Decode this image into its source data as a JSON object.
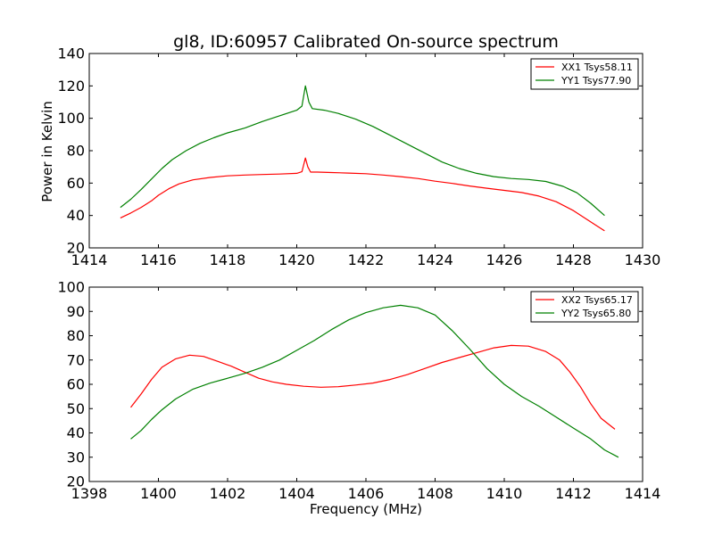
{
  "figure": {
    "title": "gl8, ID:60957 Calibrated On-source spectrum",
    "ylabel": "Power in Kelvin",
    "xlabel": "Frequency (MHz)"
  },
  "colors": {
    "XX": "#ff0000",
    "YY": "#008000",
    "axes": "#000000"
  },
  "chart_data": [
    {
      "type": "line",
      "title": "",
      "xlabel": "",
      "ylabel": "Power in Kelvin",
      "xlim": [
        1414,
        1430
      ],
      "ylim": [
        20,
        140
      ],
      "x_ticks": [
        1414,
        1416,
        1418,
        1420,
        1422,
        1424,
        1426,
        1428,
        1430
      ],
      "y_ticks": [
        20,
        40,
        60,
        80,
        100,
        120,
        140
      ],
      "legend_position": "top-right",
      "series": [
        {
          "name": "XX1 Tsys58.11",
          "color": "#ff0000",
          "points": [
            [
              1414.9,
              38.5
            ],
            [
              1415.2,
              41.5
            ],
            [
              1415.5,
              45
            ],
            [
              1415.8,
              49
            ],
            [
              1416.0,
              52.5
            ],
            [
              1416.3,
              56.5
            ],
            [
              1416.6,
              59.5
            ],
            [
              1417.0,
              62
            ],
            [
              1417.5,
              63.5
            ],
            [
              1418.0,
              64.5
            ],
            [
              1418.5,
              65
            ],
            [
              1419.0,
              65.3
            ],
            [
              1419.5,
              65.6
            ],
            [
              1420.0,
              66
            ],
            [
              1420.15,
              67
            ],
            [
              1420.25,
              75.5
            ],
            [
              1420.32,
              70
            ],
            [
              1420.4,
              66.8
            ],
            [
              1420.6,
              66.8
            ],
            [
              1421.0,
              66.5
            ],
            [
              1421.5,
              66.2
            ],
            [
              1422.0,
              65.8
            ],
            [
              1422.5,
              65
            ],
            [
              1423.0,
              64
            ],
            [
              1423.5,
              62.8
            ],
            [
              1424.0,
              61.2
            ],
            [
              1424.5,
              59.8
            ],
            [
              1425.0,
              58.2
            ],
            [
              1425.5,
              56.8
            ],
            [
              1426.0,
              55.5
            ],
            [
              1426.5,
              54.2
            ],
            [
              1427.0,
              52
            ],
            [
              1427.5,
              48.5
            ],
            [
              1428.0,
              43
            ],
            [
              1428.5,
              36
            ],
            [
              1428.9,
              30.5
            ]
          ]
        },
        {
          "name": "YY1 Tsys77.90",
          "color": "#008000",
          "points": [
            [
              1414.9,
              45
            ],
            [
              1415.2,
              50
            ],
            [
              1415.5,
              56
            ],
            [
              1415.8,
              62.5
            ],
            [
              1416.1,
              69
            ],
            [
              1416.4,
              74.5
            ],
            [
              1416.8,
              80
            ],
            [
              1417.2,
              84.5
            ],
            [
              1417.6,
              88
            ],
            [
              1418.0,
              91
            ],
            [
              1418.5,
              94
            ],
            [
              1419.0,
              98
            ],
            [
              1419.5,
              101.5
            ],
            [
              1420.0,
              105
            ],
            [
              1420.15,
              107.5
            ],
            [
              1420.25,
              120
            ],
            [
              1420.35,
              110
            ],
            [
              1420.45,
              106
            ],
            [
              1420.8,
              105
            ],
            [
              1421.2,
              103
            ],
            [
              1421.7,
              99.5
            ],
            [
              1422.2,
              95
            ],
            [
              1422.7,
              89.5
            ],
            [
              1423.2,
              84
            ],
            [
              1423.7,
              78.5
            ],
            [
              1424.2,
              73
            ],
            [
              1424.7,
              69
            ],
            [
              1425.2,
              66
            ],
            [
              1425.7,
              64
            ],
            [
              1426.2,
              62.8
            ],
            [
              1426.7,
              62.2
            ],
            [
              1427.2,
              61
            ],
            [
              1427.7,
              58
            ],
            [
              1428.1,
              54
            ],
            [
              1428.5,
              47.5
            ],
            [
              1428.9,
              40
            ]
          ]
        }
      ]
    },
    {
      "type": "line",
      "title": "",
      "xlabel": "Frequency (MHz)",
      "ylabel": "",
      "xlim": [
        1398,
        1414
      ],
      "ylim": [
        20,
        100
      ],
      "x_ticks": [
        1398,
        1400,
        1402,
        1404,
        1406,
        1408,
        1410,
        1412,
        1414
      ],
      "y_ticks": [
        20,
        30,
        40,
        50,
        60,
        70,
        80,
        90,
        100
      ],
      "legend_position": "top-right",
      "series": [
        {
          "name": "XX2 Tsys65.17",
          "color": "#ff0000",
          "points": [
            [
              1399.2,
              50.5
            ],
            [
              1399.5,
              56
            ],
            [
              1399.8,
              62
            ],
            [
              1400.1,
              67
            ],
            [
              1400.5,
              70.5
            ],
            [
              1400.9,
              72
            ],
            [
              1401.3,
              71.5
            ],
            [
              1401.7,
              69.5
            ],
            [
              1402.1,
              67.5
            ],
            [
              1402.5,
              65
            ],
            [
              1402.9,
              62.5
            ],
            [
              1403.3,
              61
            ],
            [
              1403.7,
              60
            ],
            [
              1404.2,
              59.2
            ],
            [
              1404.7,
              58.8
            ],
            [
              1405.2,
              59
            ],
            [
              1405.7,
              59.7
            ],
            [
              1406.2,
              60.5
            ],
            [
              1406.7,
              62
            ],
            [
              1407.2,
              64
            ],
            [
              1407.7,
              66.5
            ],
            [
              1408.2,
              69
            ],
            [
              1408.7,
              71
            ],
            [
              1409.2,
              73
            ],
            [
              1409.7,
              75
            ],
            [
              1410.2,
              76
            ],
            [
              1410.7,
              75.7
            ],
            [
              1411.2,
              73.5
            ],
            [
              1411.6,
              70
            ],
            [
              1411.9,
              65
            ],
            [
              1412.2,
              59
            ],
            [
              1412.5,
              52
            ],
            [
              1412.8,
              46
            ],
            [
              1413.2,
              41.5
            ]
          ]
        },
        {
          "name": "YY2 Tsys65.80",
          "color": "#008000",
          "points": [
            [
              1399.2,
              37.5
            ],
            [
              1399.5,
              41
            ],
            [
              1399.8,
              45.5
            ],
            [
              1400.1,
              49.5
            ],
            [
              1400.5,
              54
            ],
            [
              1401.0,
              58
            ],
            [
              1401.5,
              60.5
            ],
            [
              1402.0,
              62.5
            ],
            [
              1402.5,
              64.5
            ],
            [
              1403.0,
              67
            ],
            [
              1403.5,
              70
            ],
            [
              1404.0,
              74
            ],
            [
              1404.5,
              78
            ],
            [
              1405.0,
              82.5
            ],
            [
              1405.5,
              86.5
            ],
            [
              1406.0,
              89.5
            ],
            [
              1406.5,
              91.5
            ],
            [
              1407.0,
              92.5
            ],
            [
              1407.5,
              91.5
            ],
            [
              1408.0,
              88.5
            ],
            [
              1408.5,
              82
            ],
            [
              1409.0,
              74.5
            ],
            [
              1409.5,
              66.5
            ],
            [
              1410.0,
              60
            ],
            [
              1410.5,
              55
            ],
            [
              1411.0,
              51
            ],
            [
              1411.5,
              46.5
            ],
            [
              1412.0,
              42
            ],
            [
              1412.5,
              37.5
            ],
            [
              1412.9,
              33
            ],
            [
              1413.3,
              30
            ]
          ]
        }
      ]
    }
  ]
}
